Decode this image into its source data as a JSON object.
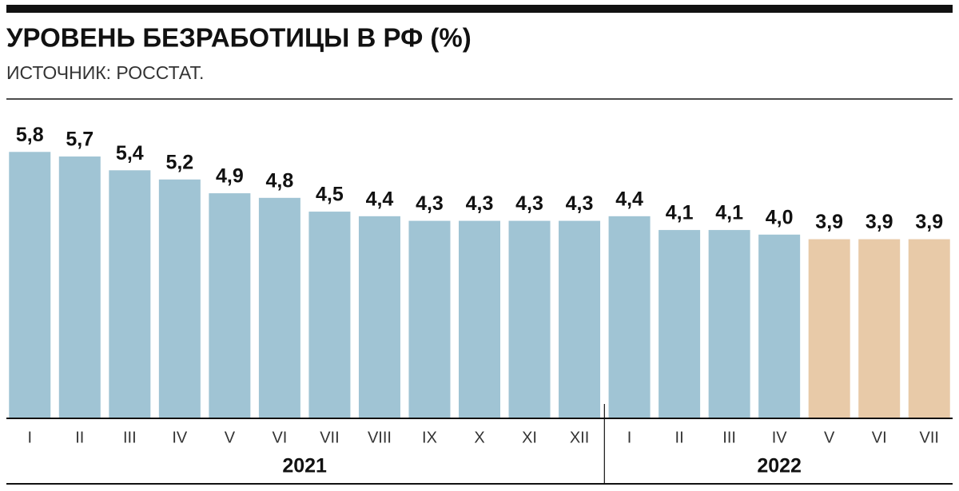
{
  "chart_data": {
    "type": "bar",
    "title": "УРОВЕНЬ БЕЗРАБОТИЦЫ В РФ (%)",
    "subtitle": "ИСТОЧНИК: РОССТАТ.",
    "categories": [
      "I",
      "II",
      "III",
      "IV",
      "V",
      "VI",
      "VII",
      "VIII",
      "IX",
      "X",
      "XI",
      "XII",
      "I",
      "II",
      "III",
      "IV",
      "V",
      "VI",
      "VII"
    ],
    "values": [
      5.8,
      5.7,
      5.4,
      5.2,
      4.9,
      4.8,
      4.5,
      4.4,
      4.3,
      4.3,
      4.3,
      4.3,
      4.4,
      4.1,
      4.1,
      4.0,
      3.9,
      3.9,
      3.9
    ],
    "value_labels": [
      "5,8",
      "5,7",
      "5,4",
      "5,2",
      "4,9",
      "4,8",
      "4,5",
      "4,4",
      "4,3",
      "4,3",
      "4,3",
      "4,3",
      "4,4",
      "4,1",
      "4,1",
      "4,0",
      "3,9",
      "3,9",
      "3,9"
    ],
    "colors": [
      "#a0c4d4",
      "#a0c4d4",
      "#a0c4d4",
      "#a0c4d4",
      "#a0c4d4",
      "#a0c4d4",
      "#a0c4d4",
      "#a0c4d4",
      "#a0c4d4",
      "#a0c4d4",
      "#a0c4d4",
      "#a0c4d4",
      "#a0c4d4",
      "#a0c4d4",
      "#a0c4d4",
      "#a0c4d4",
      "#e8caa8",
      "#e8caa8",
      "#e8caa8"
    ],
    "groups": [
      {
        "label": "2021",
        "count": 12
      },
      {
        "label": "2022",
        "count": 7
      }
    ],
    "ylim": [
      0,
      6.5
    ]
  }
}
